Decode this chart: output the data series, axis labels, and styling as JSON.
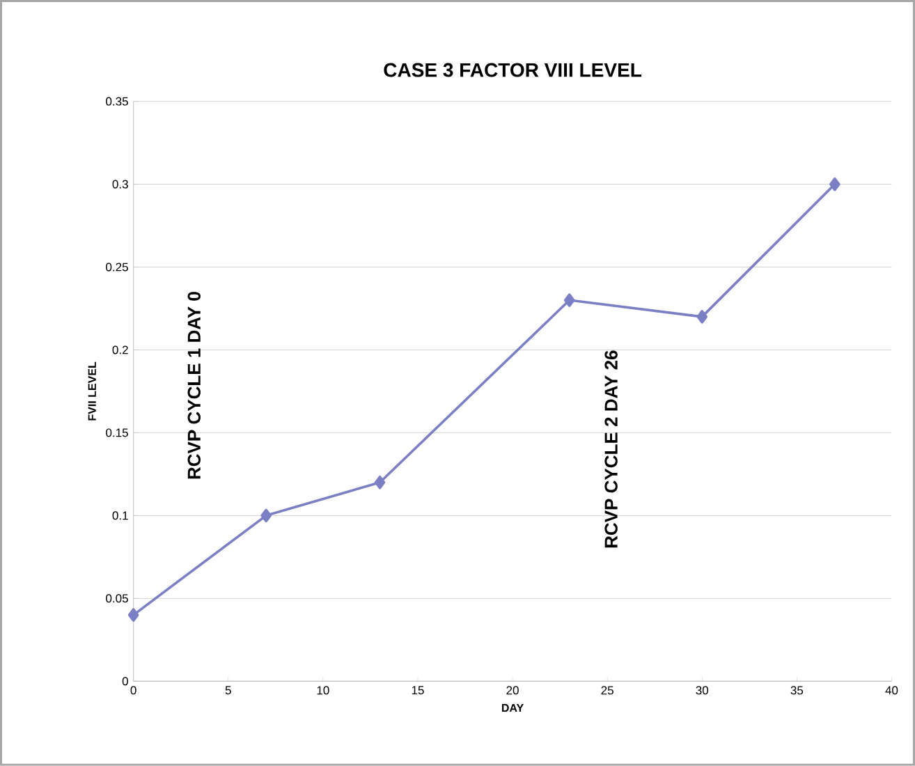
{
  "chart_data": {
    "type": "line",
    "title": "CASE 3 FACTOR VIII LEVEL",
    "xlabel": "DAY",
    "ylabel": "FVII LEVEL",
    "x": [
      0,
      7,
      13,
      23,
      30,
      37
    ],
    "series": [
      {
        "color": "#7b7fc4",
        "values": [
          0.04,
          0.1,
          0.12,
          0.23,
          0.22,
          0.3
        ]
      }
    ],
    "xlim": [
      0,
      40
    ],
    "xticks": [
      0,
      5,
      10,
      15,
      20,
      25,
      30,
      35,
      40
    ],
    "ylim": [
      0,
      0.35
    ],
    "yticks": [
      0,
      0.05,
      0.1,
      0.15,
      0.2,
      0.25,
      0.3,
      0.35
    ],
    "grid": "y",
    "marker": "diamond",
    "line_style": "solid",
    "annotations": [
      "RCVP CYCLE 1 DAY 0",
      "RCVP CYCLE 2 DAY 26"
    ]
  }
}
